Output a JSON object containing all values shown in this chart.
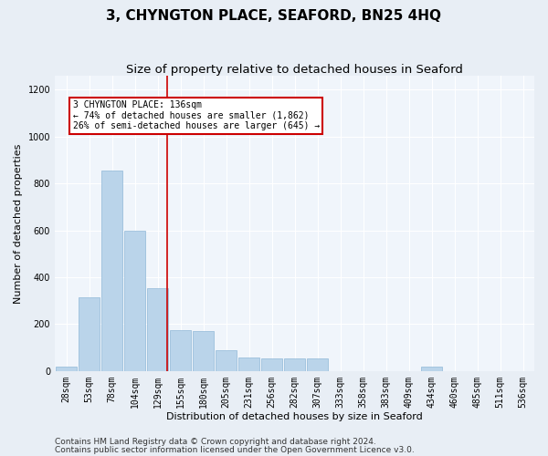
{
  "title": "3, CHYNGTON PLACE, SEAFORD, BN25 4HQ",
  "subtitle": "Size of property relative to detached houses in Seaford",
  "xlabel": "Distribution of detached houses by size in Seaford",
  "ylabel": "Number of detached properties",
  "bar_color": "#bad4ea",
  "bar_edge_color": "#90b8d8",
  "categories": [
    "28sqm",
    "53sqm",
    "78sqm",
    "104sqm",
    "129sqm",
    "155sqm",
    "180sqm",
    "205sqm",
    "231sqm",
    "256sqm",
    "282sqm",
    "307sqm",
    "333sqm",
    "358sqm",
    "383sqm",
    "409sqm",
    "434sqm",
    "460sqm",
    "485sqm",
    "511sqm",
    "536sqm"
  ],
  "values": [
    18,
    315,
    855,
    600,
    355,
    175,
    170,
    90,
    58,
    55,
    55,
    52,
    0,
    0,
    0,
    0,
    18,
    0,
    0,
    0,
    0
  ],
  "vline_color": "#cc0000",
  "vline_pos": 4.43,
  "annotation_text": "3 CHYNGTON PLACE: 136sqm\n← 74% of detached houses are smaller (1,862)\n26% of semi-detached houses are larger (645) →",
  "annotation_box_color": "#ffffff",
  "annotation_box_edge": "#cc0000",
  "footer1": "Contains HM Land Registry data © Crown copyright and database right 2024.",
  "footer2": "Contains public sector information licensed under the Open Government Licence v3.0.",
  "ylim": [
    0,
    1260
  ],
  "yticks": [
    0,
    200,
    400,
    600,
    800,
    1000,
    1200
  ],
  "bg_color": "#e8eef5",
  "plot_bg_color": "#f0f5fb",
  "grid_color": "#ffffff",
  "title_fontsize": 11,
  "subtitle_fontsize": 9.5,
  "axis_label_fontsize": 8,
  "tick_fontsize": 7,
  "footer_fontsize": 6.5
}
